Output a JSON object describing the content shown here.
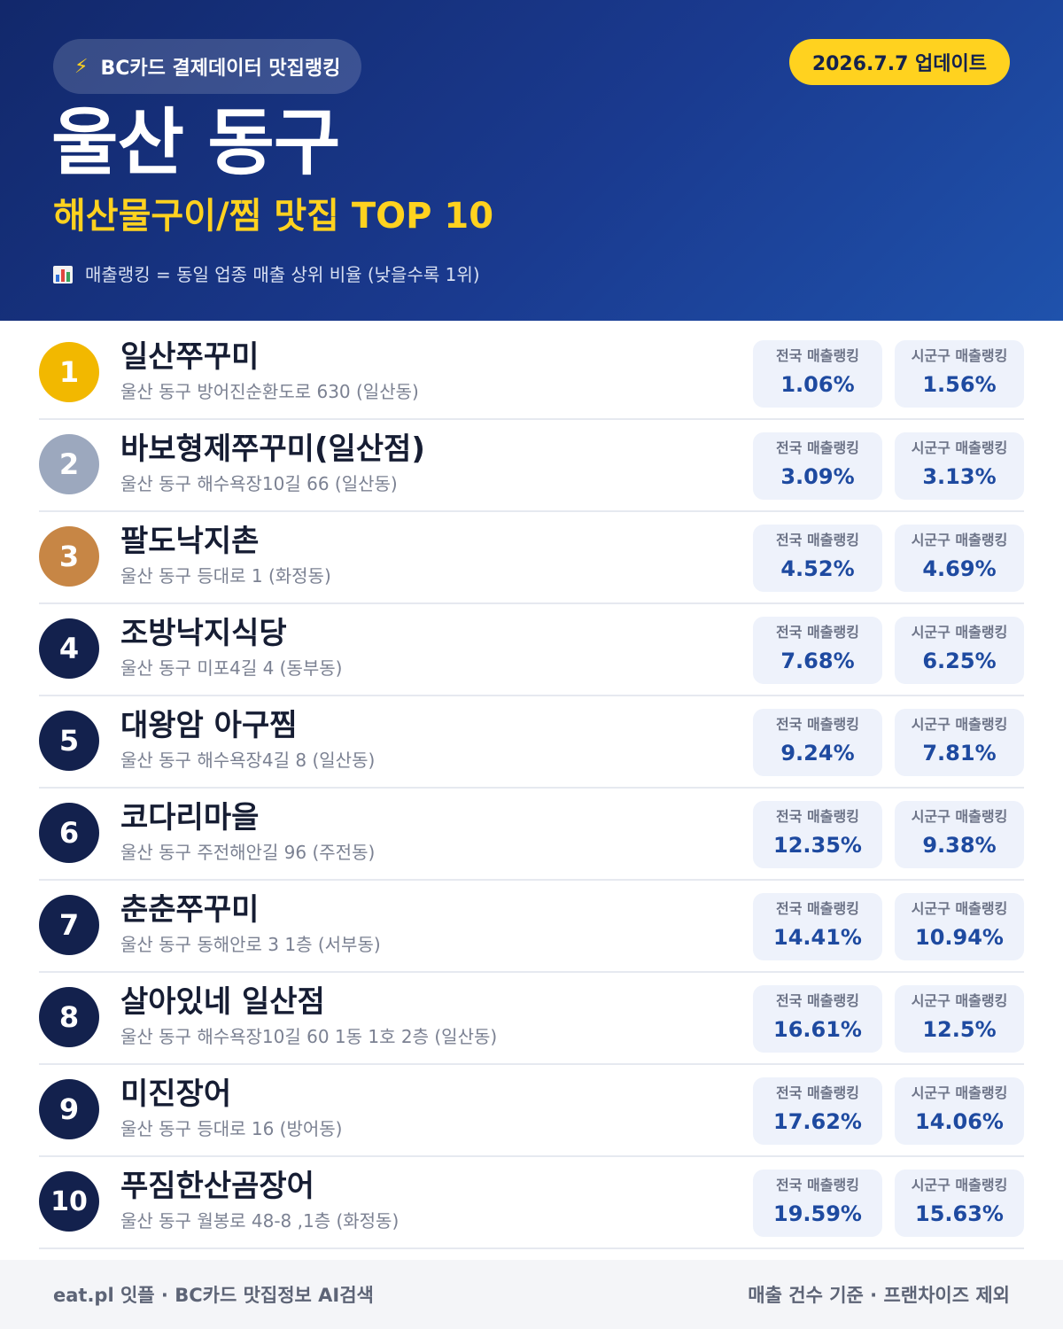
{
  "header": {
    "brand_icon": "bolt-icon",
    "brand": "BC카드 결제데이터 맛집랭킹",
    "update": "2026.7.7 업데이트",
    "region": "울산 동구",
    "category": "해산물구이/찜 맛집 TOP 10",
    "note_icon": "bar-chart-icon",
    "note": "매출랭킹 = 동일 업종 매출 상위 비율 (낮을수록 1위)"
  },
  "colors": {
    "header_bg": "#1a3a8f",
    "accent_yellow": "#ffd21f",
    "rank_gold": "#f2b800",
    "rank_silver": "#9ca8be",
    "rank_bronze": "#c78645",
    "rank_default": "#13214d",
    "value_blue": "#1e4aa0"
  },
  "labels": {
    "national": "전국 매출랭킹",
    "local": "시군구 매출랭킹"
  },
  "restaurants": [
    {
      "rank": "1",
      "name": "일산쭈꾸미",
      "address": "울산 동구 방어진순환도로 630 (일산동)",
      "national": "1.06%",
      "local": "1.56%"
    },
    {
      "rank": "2",
      "name": "바보형제쭈꾸미(일산점)",
      "address": "울산 동구 해수욕장10길 66 (일산동)",
      "national": "3.09%",
      "local": "3.13%"
    },
    {
      "rank": "3",
      "name": "팔도낙지촌",
      "address": "울산 동구 등대로 1 (화정동)",
      "national": "4.52%",
      "local": "4.69%"
    },
    {
      "rank": "4",
      "name": "조방낙지식당",
      "address": "울산 동구 미포4길 4 (동부동)",
      "national": "7.68%",
      "local": "6.25%"
    },
    {
      "rank": "5",
      "name": "대왕암 아구찜",
      "address": "울산 동구 해수욕장4길 8 (일산동)",
      "national": "9.24%",
      "local": "7.81%"
    },
    {
      "rank": "6",
      "name": "코다리마을",
      "address": "울산 동구 주전해안길 96 (주전동)",
      "national": "12.35%",
      "local": "9.38%"
    },
    {
      "rank": "7",
      "name": "춘춘쭈꾸미",
      "address": "울산 동구 동해안로 3 1층 (서부동)",
      "national": "14.41%",
      "local": "10.94%"
    },
    {
      "rank": "8",
      "name": "살아있네 일산점",
      "address": "울산 동구 해수욕장10길 60 1동 1호 2층 (일산동)",
      "national": "16.61%",
      "local": "12.5%"
    },
    {
      "rank": "9",
      "name": "미진장어",
      "address": "울산 동구 등대로 16 (방어동)",
      "national": "17.62%",
      "local": "14.06%"
    },
    {
      "rank": "10",
      "name": "푸짐한산곰장어",
      "address": "울산 동구 월봉로 48-8 ,1층 (화정동)",
      "national": "19.59%",
      "local": "15.63%"
    }
  ],
  "footer": {
    "left": "eat.pl 잇플 · BC카드 맛집정보 AI검색",
    "right": "매출 건수 기준 · 프랜차이즈 제외"
  }
}
